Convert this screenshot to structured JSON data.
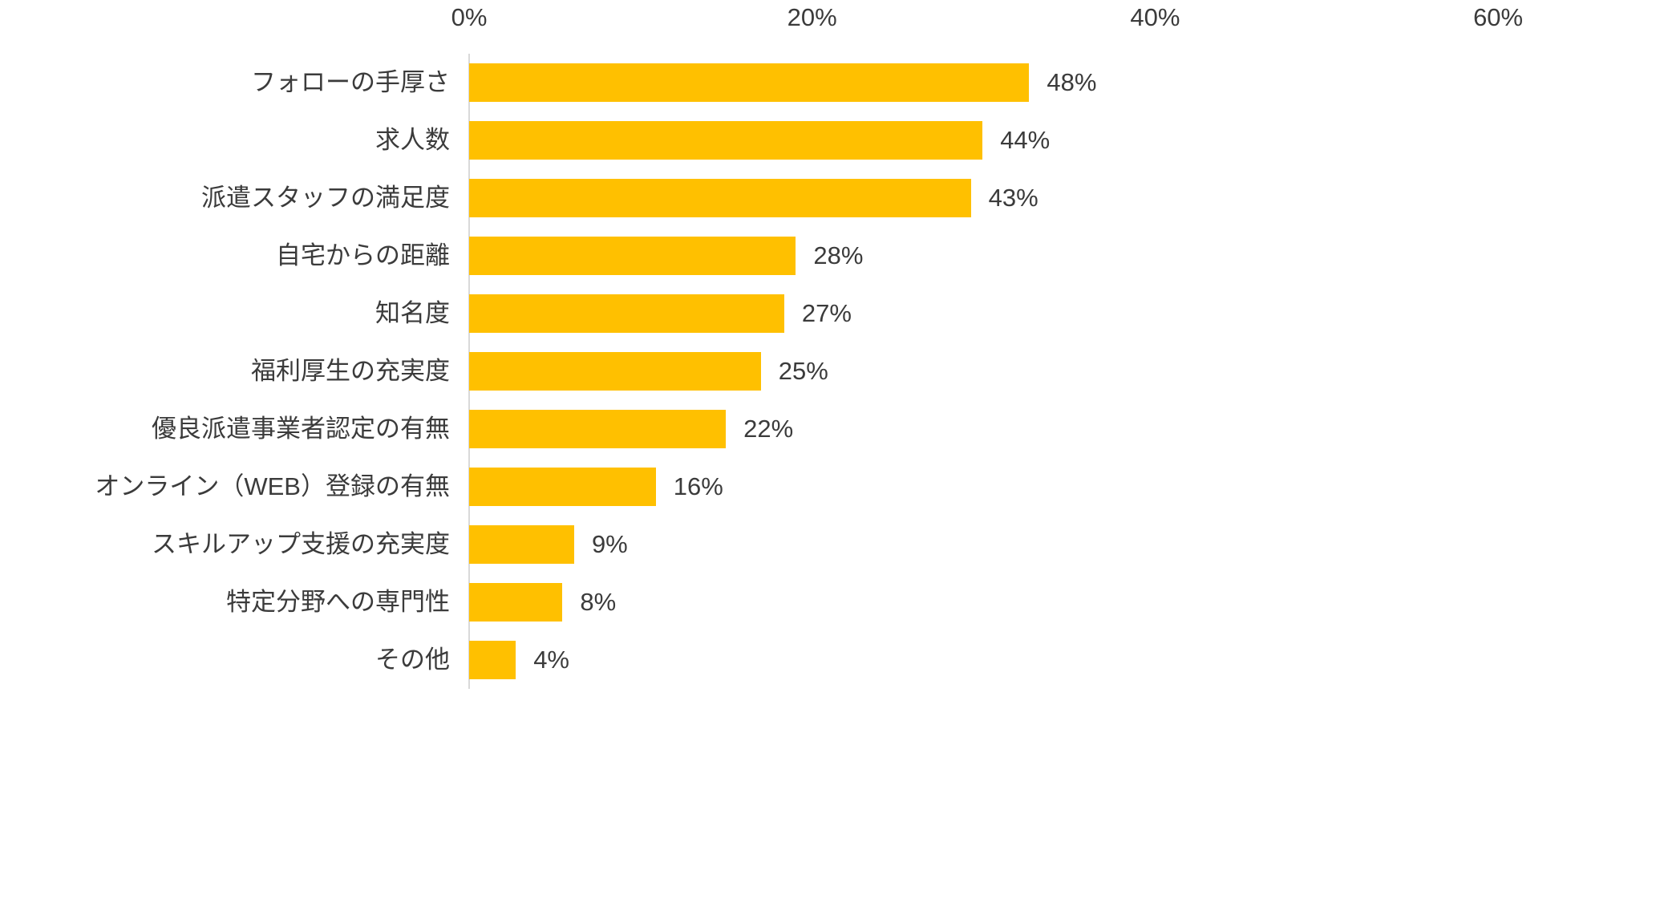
{
  "chart_data": {
    "type": "bar",
    "orientation": "horizontal",
    "title": "",
    "xlabel": "",
    "ylabel": "",
    "categories": [
      "フォローの手厚さ",
      "求人数",
      "派遣スタッフの満足度",
      "自宅からの距離",
      "知名度",
      "福利厚生の充実度",
      "優良派遣事業者認定の有無",
      "オンライン（WEB）登録の有無",
      "スキルアップ支援の充実度",
      "特定分野への専門性",
      "その他"
    ],
    "values": [
      48,
      44,
      43,
      28,
      27,
      25,
      22,
      16,
      9,
      8,
      4
    ],
    "value_labels": [
      "48%",
      "44%",
      "43%",
      "28%",
      "27%",
      "25%",
      "22%",
      "16%",
      "9%",
      "8%",
      "4%"
    ],
    "x_axis": {
      "position": "top",
      "min": 0,
      "max": 60,
      "tick_labels": [
        "0%",
        "20%",
        "40%",
        "60%"
      ]
    },
    "grid": false,
    "legend": false,
    "bar_color": "#FFC000",
    "text_color": "#3b3b3b",
    "axis_line_color": "#d9d9d9",
    "background_color": "#ffffff"
  }
}
